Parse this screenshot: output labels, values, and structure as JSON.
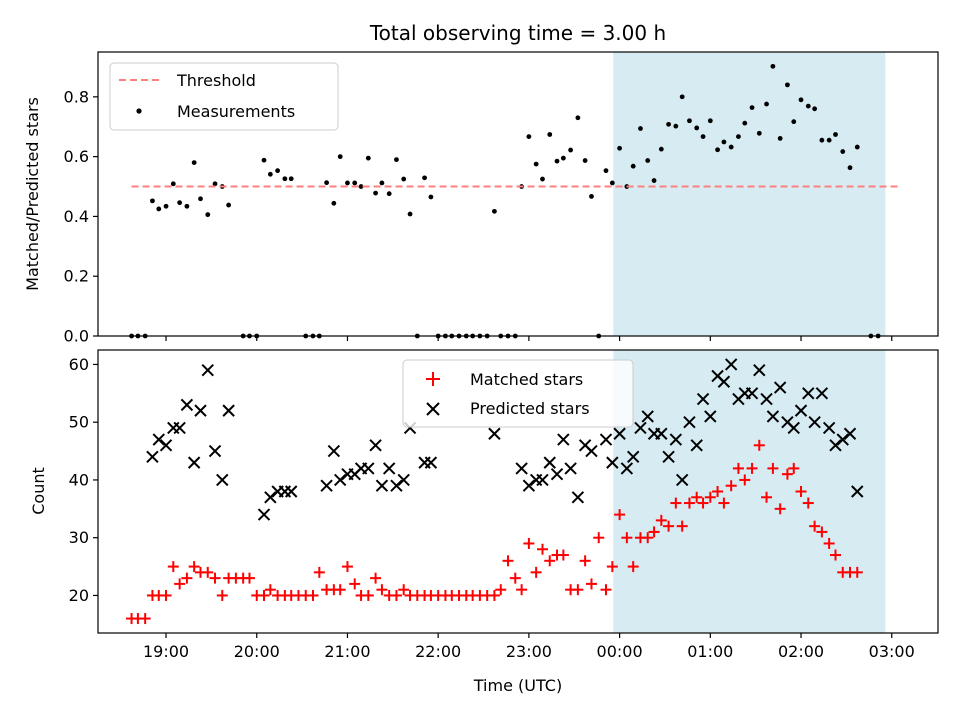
{
  "chart_data": {
    "type": "scatter",
    "title": "Total observing time = 3.00 h",
    "xlabel": "Time (UTC)",
    "x_ticks": [
      "19:00",
      "20:00",
      "21:00",
      "22:00",
      "23:00",
      "00:00",
      "01:00",
      "02:00",
      "03:00"
    ],
    "x_tick_hours": [
      19,
      20,
      21,
      22,
      23,
      24,
      25,
      26,
      27
    ],
    "xlim": [
      18.25,
      27.51
    ],
    "shaded_span_hours": [
      23.93,
      26.93
    ],
    "colors": {
      "threshold": "#ff7f7f",
      "measurements": "#000000",
      "matched": "#ff0000",
      "predicted": "#000000",
      "shade": "#add8e6"
    },
    "top_panel": {
      "ylabel": "Matched/Predicted stars",
      "ylim": [
        0,
        0.95
      ],
      "y_ticks": [
        "0.0",
        "0.2",
        "0.4",
        "0.6",
        "0.8"
      ],
      "y_tick_values": [
        0,
        0.2,
        0.4,
        0.6,
        0.8
      ],
      "legend": [
        "Threshold",
        "Measurements"
      ],
      "threshold": {
        "value": 0.5,
        "x_range": [
          18.62,
          27.08
        ]
      },
      "measurements": [
        [
          18.62,
          0
        ],
        [
          18.69,
          0
        ],
        [
          18.77,
          0
        ],
        [
          18.85,
          0.452
        ],
        [
          18.92,
          0.425
        ],
        [
          19.0,
          0.434
        ],
        [
          19.08,
          0.509
        ],
        [
          19.15,
          0.446
        ],
        [
          19.23,
          0.434
        ],
        [
          19.31,
          0.58
        ],
        [
          19.38,
          0.459
        ],
        [
          19.46,
          0.406
        ],
        [
          19.54,
          0.509
        ],
        [
          19.62,
          0.5
        ],
        [
          19.69,
          0.438
        ],
        [
          19.85,
          0
        ],
        [
          19.92,
          0
        ],
        [
          20.0,
          0
        ],
        [
          20.08,
          0.588
        ],
        [
          20.15,
          0.541
        ],
        [
          20.23,
          0.553
        ],
        [
          20.31,
          0.526
        ],
        [
          20.38,
          0.526
        ],
        [
          20.54,
          0
        ],
        [
          20.62,
          0
        ],
        [
          20.69,
          0
        ],
        [
          20.77,
          0.513
        ],
        [
          20.85,
          0.444
        ],
        [
          20.92,
          0.6
        ],
        [
          21.0,
          0.512
        ],
        [
          21.08,
          0.512
        ],
        [
          21.15,
          0.5
        ],
        [
          21.23,
          0.595
        ],
        [
          21.31,
          0.478
        ],
        [
          21.38,
          0.512
        ],
        [
          21.46,
          0.476
        ],
        [
          21.54,
          0.59
        ],
        [
          21.62,
          0.525
        ],
        [
          21.69,
          0.408
        ],
        [
          21.77,
          0
        ],
        [
          21.85,
          0.529
        ],
        [
          21.92,
          0.465
        ],
        [
          22.0,
          0
        ],
        [
          22.08,
          0
        ],
        [
          22.15,
          0
        ],
        [
          22.23,
          0
        ],
        [
          22.31,
          0
        ],
        [
          22.38,
          0
        ],
        [
          22.46,
          0
        ],
        [
          22.54,
          0
        ],
        [
          22.62,
          0.417
        ],
        [
          22.69,
          0
        ],
        [
          22.77,
          0
        ],
        [
          22.85,
          0
        ],
        [
          22.92,
          0.5
        ],
        [
          23.0,
          0.667
        ],
        [
          23.08,
          0.575
        ],
        [
          23.15,
          0.525
        ],
        [
          23.23,
          0.674
        ],
        [
          23.31,
          0.585
        ],
        [
          23.38,
          0.595
        ],
        [
          23.46,
          0.622
        ],
        [
          23.54,
          0.73
        ],
        [
          23.62,
          0.587
        ],
        [
          23.69,
          0.467
        ],
        [
          23.77,
          0
        ],
        [
          23.85,
          0.553
        ],
        [
          23.92,
          0.512
        ],
        [
          24.0,
          0.628
        ],
        [
          24.08,
          0.5
        ],
        [
          24.15,
          0.568
        ],
        [
          24.23,
          0.694
        ],
        [
          24.31,
          0.587
        ],
        [
          24.38,
          0.52
        ],
        [
          24.46,
          0.625
        ],
        [
          24.54,
          0.708
        ],
        [
          24.62,
          0.702
        ],
        [
          24.69,
          0.8
        ],
        [
          24.77,
          0.72
        ],
        [
          24.85,
          0.696
        ],
        [
          24.92,
          0.667
        ],
        [
          25.0,
          0.72
        ],
        [
          25.08,
          0.623
        ],
        [
          25.15,
          0.649
        ],
        [
          25.23,
          0.632
        ],
        [
          25.31,
          0.667
        ],
        [
          25.38,
          0.712
        ],
        [
          25.46,
          0.764
        ],
        [
          25.54,
          0.678
        ],
        [
          25.62,
          0.776
        ],
        [
          25.69,
          0.902
        ],
        [
          25.77,
          0.661
        ],
        [
          25.85,
          0.84
        ],
        [
          25.92,
          0.717
        ],
        [
          26.0,
          0.79
        ],
        [
          26.08,
          0.769
        ],
        [
          26.15,
          0.76
        ],
        [
          26.23,
          0.655
        ],
        [
          26.31,
          0.655
        ],
        [
          26.38,
          0.674
        ],
        [
          26.46,
          0.617
        ],
        [
          26.54,
          0.563
        ],
        [
          26.62,
          0.632
        ],
        [
          26.77,
          0
        ],
        [
          26.85,
          0
        ]
      ]
    },
    "bottom_panel": {
      "ylabel": "Count",
      "ylim": [
        13.5,
        62.5
      ],
      "y_ticks": [
        "20",
        "30",
        "40",
        "50",
        "60"
      ],
      "y_tick_values": [
        20,
        30,
        40,
        50,
        60
      ],
      "legend": [
        "Matched stars",
        "Predicted stars"
      ],
      "matched": [
        [
          18.62,
          16
        ],
        [
          18.69,
          16
        ],
        [
          18.77,
          16
        ],
        [
          18.85,
          20
        ],
        [
          18.92,
          20
        ],
        [
          19.0,
          20
        ],
        [
          19.08,
          25
        ],
        [
          19.15,
          22
        ],
        [
          19.23,
          23
        ],
        [
          19.31,
          25
        ],
        [
          19.38,
          24
        ],
        [
          19.46,
          24
        ],
        [
          19.54,
          23
        ],
        [
          19.62,
          20
        ],
        [
          19.69,
          23
        ],
        [
          19.77,
          23
        ],
        [
          19.85,
          23
        ],
        [
          19.92,
          23
        ],
        [
          20.0,
          20
        ],
        [
          20.08,
          20
        ],
        [
          20.15,
          21
        ],
        [
          20.23,
          20
        ],
        [
          20.31,
          20
        ],
        [
          20.38,
          20
        ],
        [
          20.46,
          20
        ],
        [
          20.54,
          20
        ],
        [
          20.62,
          20
        ],
        [
          20.69,
          24
        ],
        [
          20.77,
          21
        ],
        [
          20.85,
          21
        ],
        [
          20.92,
          21
        ],
        [
          21.0,
          25
        ],
        [
          21.08,
          22
        ],
        [
          21.15,
          20
        ],
        [
          21.23,
          20
        ],
        [
          21.31,
          23
        ],
        [
          21.38,
          21
        ],
        [
          21.46,
          20
        ],
        [
          21.54,
          20
        ],
        [
          21.62,
          21
        ],
        [
          21.69,
          20
        ],
        [
          21.77,
          20
        ],
        [
          21.85,
          20
        ],
        [
          21.92,
          20
        ],
        [
          22.0,
          20
        ],
        [
          22.08,
          20
        ],
        [
          22.15,
          20
        ],
        [
          22.23,
          20
        ],
        [
          22.31,
          20
        ],
        [
          22.38,
          20
        ],
        [
          22.46,
          20
        ],
        [
          22.54,
          20
        ],
        [
          22.62,
          20
        ],
        [
          22.69,
          21
        ],
        [
          22.77,
          26
        ],
        [
          22.85,
          23
        ],
        [
          22.92,
          21
        ],
        [
          23.0,
          29
        ],
        [
          23.08,
          24
        ],
        [
          23.15,
          28
        ],
        [
          23.23,
          26
        ],
        [
          23.31,
          27
        ],
        [
          23.38,
          27
        ],
        [
          23.46,
          21
        ],
        [
          23.54,
          21
        ],
        [
          23.62,
          26
        ],
        [
          23.69,
          22
        ],
        [
          23.77,
          30
        ],
        [
          23.85,
          21
        ],
        [
          23.92,
          25
        ],
        [
          24.0,
          34
        ],
        [
          24.08,
          30
        ],
        [
          24.15,
          25
        ],
        [
          24.23,
          30
        ],
        [
          24.31,
          30
        ],
        [
          24.38,
          31
        ],
        [
          24.46,
          33
        ],
        [
          24.54,
          32
        ],
        [
          24.62,
          36
        ],
        [
          24.69,
          32
        ],
        [
          24.77,
          36
        ],
        [
          24.85,
          37
        ],
        [
          24.92,
          36
        ],
        [
          25.0,
          37
        ],
        [
          25.08,
          38
        ],
        [
          25.15,
          36
        ],
        [
          25.23,
          39
        ],
        [
          25.31,
          42
        ],
        [
          25.38,
          40
        ],
        [
          25.46,
          42
        ],
        [
          25.54,
          46
        ],
        [
          25.62,
          37
        ],
        [
          25.69,
          42
        ],
        [
          25.77,
          35
        ],
        [
          25.85,
          41
        ],
        [
          25.92,
          42
        ],
        [
          26.0,
          38
        ],
        [
          26.08,
          36
        ],
        [
          26.15,
          32
        ],
        [
          26.23,
          31
        ],
        [
          26.31,
          29
        ],
        [
          26.38,
          27
        ],
        [
          26.46,
          24
        ],
        [
          26.54,
          24
        ],
        [
          26.62,
          24
        ]
      ],
      "predicted": [
        [
          18.85,
          44
        ],
        [
          18.92,
          47
        ],
        [
          19.0,
          46
        ],
        [
          19.08,
          49
        ],
        [
          19.15,
          49
        ],
        [
          19.23,
          53
        ],
        [
          19.31,
          43
        ],
        [
          19.38,
          52
        ],
        [
          19.46,
          59
        ],
        [
          19.54,
          45
        ],
        [
          19.62,
          40
        ],
        [
          19.69,
          52
        ],
        [
          20.08,
          34
        ],
        [
          20.15,
          37
        ],
        [
          20.23,
          38
        ],
        [
          20.31,
          38
        ],
        [
          20.38,
          38
        ],
        [
          20.77,
          39
        ],
        [
          20.85,
          45
        ],
        [
          20.92,
          40
        ],
        [
          21.0,
          41
        ],
        [
          21.08,
          41
        ],
        [
          21.15,
          42
        ],
        [
          21.23,
          42
        ],
        [
          21.31,
          46
        ],
        [
          21.38,
          39
        ],
        [
          21.46,
          42
        ],
        [
          21.54,
          39
        ],
        [
          21.62,
          40
        ],
        [
          21.69,
          49
        ],
        [
          21.85,
          43
        ],
        [
          21.92,
          43
        ],
        [
          22.62,
          48
        ],
        [
          22.92,
          42
        ],
        [
          23.0,
          39
        ],
        [
          23.08,
          40
        ],
        [
          23.15,
          40
        ],
        [
          23.23,
          43
        ],
        [
          23.31,
          41
        ],
        [
          23.38,
          47
        ],
        [
          23.46,
          42
        ],
        [
          23.54,
          37
        ],
        [
          23.62,
          46
        ],
        [
          23.69,
          45
        ],
        [
          23.85,
          47
        ],
        [
          23.92,
          43
        ],
        [
          24.0,
          48
        ],
        [
          24.08,
          42
        ],
        [
          24.15,
          44
        ],
        [
          24.23,
          49
        ],
        [
          24.31,
          51
        ],
        [
          24.38,
          48
        ],
        [
          24.46,
          48
        ],
        [
          24.54,
          44
        ],
        [
          24.62,
          47
        ],
        [
          24.69,
          40
        ],
        [
          24.77,
          50
        ],
        [
          24.85,
          46
        ],
        [
          24.92,
          54
        ],
        [
          25.0,
          51
        ],
        [
          25.08,
          58
        ],
        [
          25.15,
          57
        ],
        [
          25.23,
          60
        ],
        [
          25.31,
          54
        ],
        [
          25.38,
          55
        ],
        [
          25.46,
          55
        ],
        [
          25.54,
          59
        ],
        [
          25.62,
          54
        ],
        [
          25.69,
          51
        ],
        [
          25.77,
          56
        ],
        [
          25.85,
          50
        ],
        [
          25.92,
          49
        ],
        [
          26.0,
          52
        ],
        [
          26.08,
          55
        ],
        [
          26.15,
          50
        ],
        [
          26.23,
          55
        ],
        [
          26.31,
          49
        ],
        [
          26.38,
          46
        ],
        [
          26.46,
          47
        ],
        [
          26.54,
          48
        ],
        [
          26.62,
          38
        ]
      ]
    }
  }
}
